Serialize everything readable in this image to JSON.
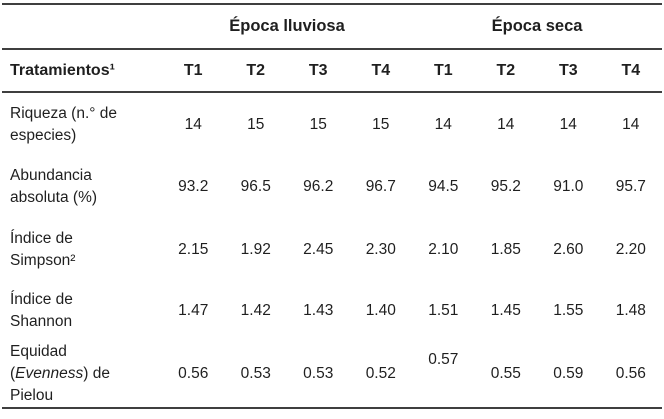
{
  "table": {
    "group_headers": [
      {
        "label": "Época lluviosa"
      },
      {
        "label": "Época seca"
      }
    ],
    "corner_label": "Tratamientos¹",
    "column_headers": [
      "T1",
      "T2",
      "T3",
      "T4",
      "T1",
      "T2",
      "T3",
      "T4"
    ],
    "rows": [
      {
        "label": "Riqueza (n.° de especies)",
        "values": [
          "14",
          "15",
          "15",
          "15",
          "14",
          "14",
          "14",
          "14"
        ]
      },
      {
        "label": "Abundancia absoluta (%)",
        "values": [
          "93.2",
          "96.5",
          "96.2",
          "96.7",
          "94.5",
          "95.2",
          "91.0",
          "95.7"
        ]
      },
      {
        "label": "Índice de Simpson²",
        "values": [
          "2.15",
          "1.92",
          "2.45",
          "2.30",
          "2.10",
          "1.85",
          "2.60",
          "2.20"
        ]
      },
      {
        "label": "Índice de Shannon",
        "values": [
          "1.47",
          "1.42",
          "1.43",
          "1.40",
          "1.51",
          "1.45",
          "1.55",
          "1.48"
        ]
      },
      {
        "label_prefix": "Equidad (",
        "label_italic": "Evenness",
        "label_suffix": ") de Pielou",
        "values": [
          "0.56",
          "0.53",
          "0.53",
          "0.52",
          "0.57",
          "0.55",
          "0.59",
          "0.56"
        ]
      }
    ]
  },
  "colors": {
    "text": "#1f1f1f",
    "rule": "#3f3f3f",
    "background": "#ffffff"
  },
  "chart_data": {
    "type": "table",
    "group_headers": [
      "Época lluviosa",
      "Época seca"
    ],
    "columns": [
      "Tratamientos¹",
      "T1",
      "T2",
      "T3",
      "T4",
      "T1",
      "T2",
      "T3",
      "T4"
    ],
    "rows": [
      [
        "Riqueza (n.° de especies)",
        14,
        15,
        15,
        15,
        14,
        14,
        14,
        14
      ],
      [
        "Abundancia absoluta (%)",
        93.2,
        96.5,
        96.2,
        96.7,
        94.5,
        95.2,
        91.0,
        95.7
      ],
      [
        "Índice de Simpson²",
        2.15,
        1.92,
        2.45,
        2.3,
        2.1,
        1.85,
        2.6,
        2.2
      ],
      [
        "Índice de Shannon",
        1.47,
        1.42,
        1.43,
        1.4,
        1.51,
        1.45,
        1.55,
        1.48
      ],
      [
        "Equidad (Evenness) de Pielou",
        0.56,
        0.53,
        0.53,
        0.52,
        0.57,
        0.55,
        0.59,
        0.56
      ]
    ]
  }
}
